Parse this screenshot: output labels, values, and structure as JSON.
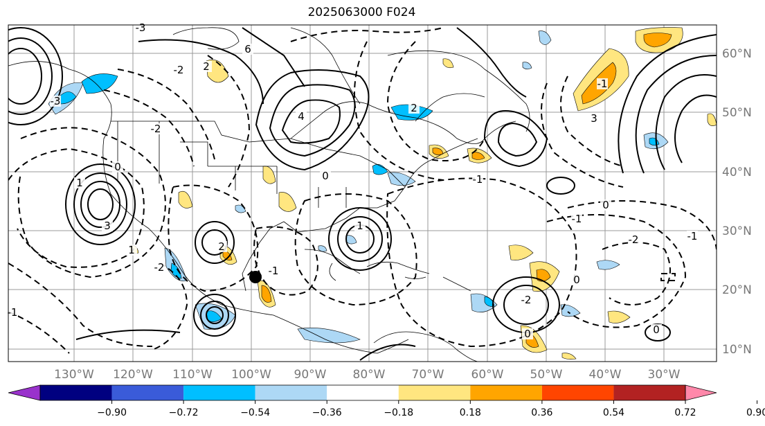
{
  "title": "2025063000 F024",
  "map": {
    "lon_labels": [
      "130°W",
      "120°W",
      "110°W",
      "100°W",
      "90°W",
      "80°W",
      "70°W",
      "60°W",
      "50°W",
      "40°W",
      "30°W"
    ],
    "lat_labels": [
      "60°N",
      "50°N",
      "40°N",
      "30°N",
      "20°N",
      "10°N"
    ],
    "contour_labels": [
      "-3",
      "-2",
      "-1",
      "0",
      "1",
      "2",
      "3",
      "4",
      "6",
      "-2",
      "-1",
      "0",
      "1",
      "2",
      "-3",
      "-2",
      "0",
      "1",
      "-1",
      "-2",
      "3",
      "-1",
      "0",
      "-1",
      "2",
      "-2",
      "0",
      "0",
      "-1"
    ],
    "marker": "station-dot"
  },
  "colorbar": {
    "colors": [
      "#9932cc",
      "#000080",
      "#3a5bd9",
      "#00bfff",
      "#add8f5",
      "#ffffff",
      "#ffe680",
      "#ffa500",
      "#ff4500",
      "#b22222",
      "#ff88aa"
    ],
    "ticks": [
      "−0.90",
      "−0.72",
      "−0.54",
      "−0.36",
      "−0.18",
      "0.18",
      "0.36",
      "0.54",
      "0.72",
      "0.90"
    ]
  }
}
